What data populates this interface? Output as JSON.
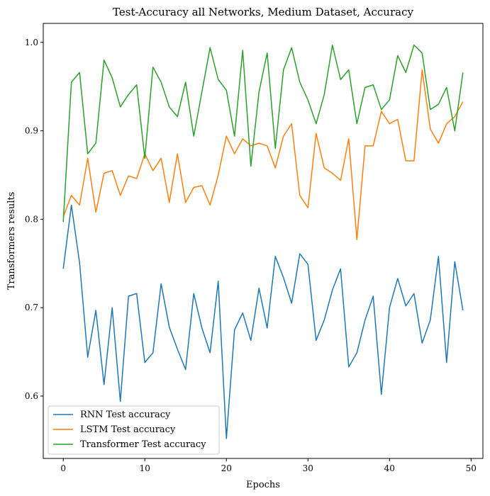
{
  "chart_data": {
    "type": "line",
    "title": "Test-Accuracy all Networks, Medium Dataset, Accuracy",
    "xlabel": "Epochs",
    "ylabel": "Transformers results",
    "xlim": [
      -2.45,
      51.45
    ],
    "ylim": [
      0.5295,
      1.0215
    ],
    "x_ticks": [
      0,
      10,
      20,
      30,
      40,
      50
    ],
    "y_ticks": [
      0.6,
      0.7,
      0.8,
      0.9,
      1.0
    ],
    "y_tick_labels": [
      "0.6",
      "0.7",
      "0.8",
      "0.9",
      "1.0"
    ],
    "grid": false,
    "legend_position": "lower-left",
    "x": [
      0,
      1,
      2,
      3,
      4,
      5,
      6,
      7,
      8,
      9,
      10,
      11,
      12,
      13,
      14,
      15,
      16,
      17,
      18,
      19,
      20,
      21,
      22,
      23,
      24,
      25,
      26,
      27,
      28,
      29,
      30,
      31,
      32,
      33,
      34,
      35,
      36,
      37,
      38,
      39,
      40,
      41,
      42,
      43,
      44,
      45,
      46,
      47,
      48,
      49
    ],
    "series": [
      {
        "name": "RNN Test accuracy",
        "color": "#1f77b4",
        "values": [
          0.744,
          0.816,
          0.751,
          0.644,
          0.697,
          0.613,
          0.7,
          0.594,
          0.713,
          0.716,
          0.638,
          0.649,
          0.727,
          0.678,
          0.653,
          0.63,
          0.716,
          0.677,
          0.649,
          0.73,
          0.552,
          0.675,
          0.694,
          0.663,
          0.722,
          0.677,
          0.758,
          0.734,
          0.705,
          0.761,
          0.749,
          0.663,
          0.686,
          0.72,
          0.744,
          0.633,
          0.649,
          0.686,
          0.713,
          0.602,
          0.7,
          0.733,
          0.702,
          0.716,
          0.66,
          0.686,
          0.758,
          0.638,
          0.752,
          0.697
        ]
      },
      {
        "name": "LSTM Test accuracy",
        "color": "#ff7f0e",
        "values": [
          0.803,
          0.827,
          0.816,
          0.869,
          0.808,
          0.852,
          0.855,
          0.827,
          0.849,
          0.846,
          0.874,
          0.855,
          0.869,
          0.819,
          0.874,
          0.819,
          0.836,
          0.838,
          0.816,
          0.85,
          0.894,
          0.874,
          0.891,
          0.883,
          0.886,
          0.883,
          0.858,
          0.894,
          0.908,
          0.827,
          0.813,
          0.897,
          0.858,
          0.852,
          0.844,
          0.891,
          0.777,
          0.883,
          0.883,
          0.922,
          0.908,
          0.913,
          0.866,
          0.866,
          0.969,
          0.902,
          0.886,
          0.908,
          0.916,
          0.933
        ]
      },
      {
        "name": "Transformer Test accuracy",
        "color": "#2ca02c",
        "values": [
          0.797,
          0.955,
          0.966,
          0.874,
          0.886,
          0.98,
          0.96,
          0.927,
          0.941,
          0.952,
          0.869,
          0.972,
          0.955,
          0.927,
          0.916,
          0.955,
          0.894,
          0.944,
          0.994,
          0.958,
          0.946,
          0.894,
          0.991,
          0.86,
          0.944,
          0.988,
          0.88,
          0.969,
          0.994,
          0.955,
          0.935,
          0.908,
          0.941,
          0.997,
          0.958,
          0.969,
          0.908,
          0.949,
          0.952,
          0.924,
          0.935,
          0.985,
          0.966,
          0.997,
          0.988,
          0.924,
          0.93,
          0.949,
          0.9,
          0.966
        ]
      }
    ]
  }
}
